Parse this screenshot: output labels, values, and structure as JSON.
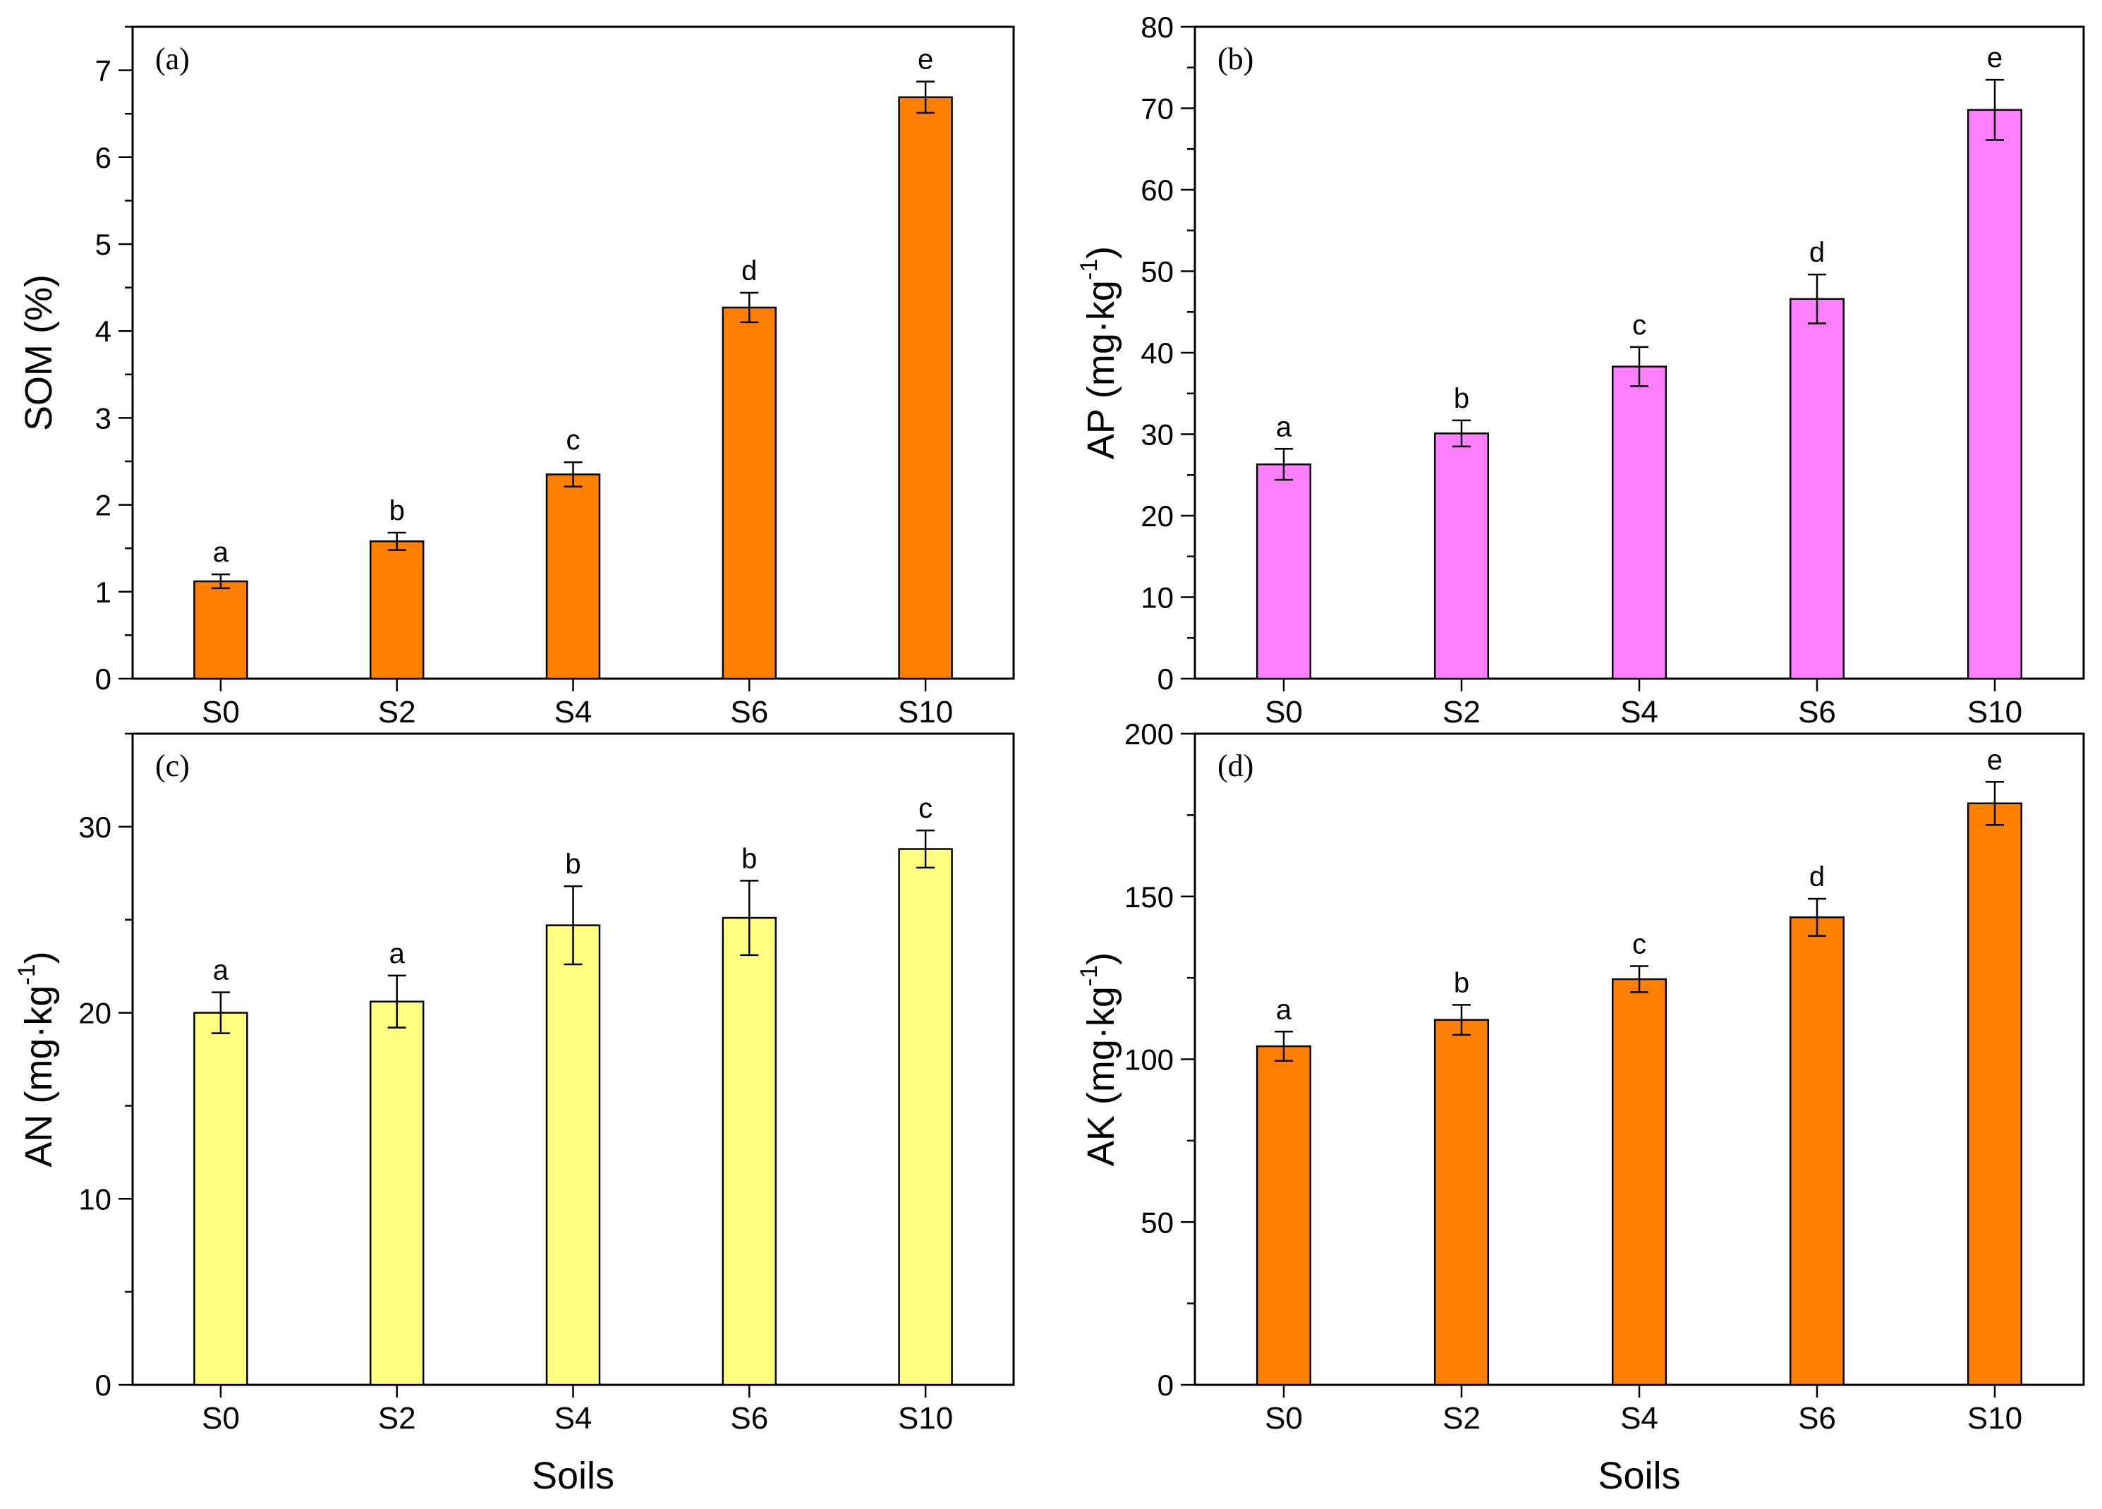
{
  "chart_data": [
    {
      "type": "bar",
      "panel_label": "(a)",
      "title": "",
      "ylabel": "SOM (%)",
      "ylabel_unit_sup": "",
      "xlabel": "",
      "categories": [
        "S0",
        "S2",
        "S4",
        "S6",
        "S10"
      ],
      "values": [
        1.12,
        1.58,
        2.35,
        4.27,
        6.69
      ],
      "errors": [
        0.08,
        0.1,
        0.14,
        0.17,
        0.18
      ],
      "letters": [
        "a",
        "b",
        "c",
        "d",
        "e"
      ],
      "ylim": [
        0,
        7.5
      ],
      "yticks": [
        0,
        1,
        2,
        3,
        4,
        5,
        6,
        7
      ],
      "minor_step": 0.5,
      "bar_color": "#ff7f00"
    },
    {
      "type": "bar",
      "panel_label": "(b)",
      "title": "",
      "ylabel": "AP (mg·kg",
      "ylabel_unit_sup": "-1",
      "xlabel": "",
      "categories": [
        "S0",
        "S2",
        "S4",
        "S6",
        "S10"
      ],
      "values": [
        26.3,
        30.1,
        38.3,
        46.6,
        69.8
      ],
      "errors": [
        1.9,
        1.6,
        2.4,
        3.0,
        3.7
      ],
      "letters": [
        "a",
        "b",
        "c",
        "d",
        "e"
      ],
      "ylim": [
        0,
        80
      ],
      "yticks": [
        0,
        10,
        20,
        30,
        40,
        50,
        60,
        70,
        80
      ],
      "minor_step": 5,
      "bar_color": "#ff80ff"
    },
    {
      "type": "bar",
      "panel_label": "(c)",
      "title": "",
      "ylabel": "AN (mg·kg",
      "ylabel_unit_sup": "-1",
      "xlabel": "Soils",
      "categories": [
        "S0",
        "S2",
        "S4",
        "S6",
        "S10"
      ],
      "values": [
        20.0,
        20.6,
        24.7,
        25.1,
        28.8
      ],
      "errors": [
        1.1,
        1.4,
        2.1,
        2.0,
        1.0
      ],
      "letters": [
        "a",
        "a",
        "b",
        "b",
        "c"
      ],
      "ylim": [
        0,
        35
      ],
      "yticks": [
        0,
        10,
        20,
        30
      ],
      "minor_step": 5,
      "bar_color": "#ffff80"
    },
    {
      "type": "bar",
      "panel_label": "(d)",
      "title": "",
      "ylabel": "AK (mg·kg",
      "ylabel_unit_sup": "-1",
      "xlabel": "Soils",
      "categories": [
        "S0",
        "S2",
        "S4",
        "S6",
        "S10"
      ],
      "values": [
        104.0,
        112.1,
        124.6,
        143.6,
        178.6
      ],
      "errors": [
        4.5,
        4.6,
        4.0,
        5.7,
        6.6
      ],
      "letters": [
        "a",
        "b",
        "c",
        "d",
        "e"
      ],
      "ylim": [
        0,
        200
      ],
      "yticks": [
        0,
        50,
        100,
        150,
        200
      ],
      "minor_step": 25,
      "bar_color": "#ff7f00"
    }
  ]
}
